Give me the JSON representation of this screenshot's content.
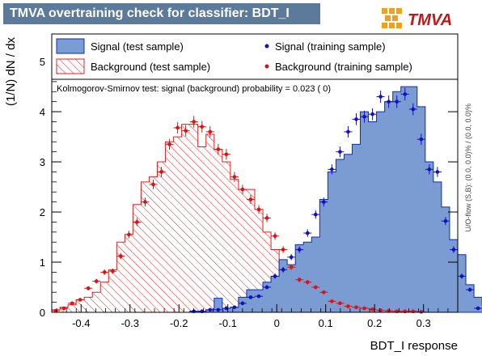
{
  "title": "TMVA overtraining check for classifier: BDT_I",
  "logo_text": "TMVA",
  "side_note": "U/O-flow (S,B): (0.0, 0.0)% / (0.0, 0.0)%",
  "ks_text": "Kolmogorov-Smirnov test: signal (background) probability = 0.023 (    0)",
  "colors": {
    "signal_fill": "#7b9bd3",
    "signal_line": "#0b2fb0",
    "background_line": "#e02020",
    "signal_points": "#1010c0",
    "background_points": "#e01010"
  },
  "chart_data": {
    "type": "histogram",
    "xlabel": "BDT_I response",
    "ylabel": "(1/N) dN / dx",
    "xlim": [
      -0.46,
      0.37
    ],
    "ylim": [
      0,
      5.55
    ],
    "x_ticks": [
      -0.4,
      -0.3,
      -0.2,
      -0.1,
      0,
      0.1,
      0.2,
      0.3
    ],
    "y_ticks": [
      0,
      1,
      2,
      3,
      4,
      5
    ],
    "legend": {
      "placement": "top",
      "entries": [
        {
          "label": "Signal (test sample)",
          "style": "filled"
        },
        {
          "label": "Signal (training sample)",
          "style": "marker"
        },
        {
          "label": "Background (test sample)",
          "style": "hatched"
        },
        {
          "label": "Background (training sample)",
          "style": "marker"
        }
      ]
    },
    "bin_edges_start": -0.46,
    "bin_width": 0.0166,
    "signal_test": [
      0,
      0,
      0,
      0,
      0,
      0,
      0,
      0,
      0,
      0,
      0,
      0,
      0,
      0,
      0,
      0,
      0,
      0.02,
      0.02,
      0.05,
      0.28,
      0.08,
      0.1,
      0.3,
      0.45,
      0.45,
      0.6,
      0.72,
      1.05,
      0.95,
      1.35,
      1.4,
      1.5,
      2.25,
      2.8,
      3.05,
      3.15,
      3.35,
      4.0,
      3.8,
      4.0,
      4.2,
      4.4,
      4.5,
      4.5,
      4.1,
      3.0,
      2.6,
      2.1,
      1.45,
      1.15,
      0.55,
      0.3,
      0.15
    ],
    "background_test": [
      0.05,
      0.1,
      0.15,
      0.25,
      0.3,
      0.4,
      0.6,
      0.85,
      1.4,
      1.55,
      2.15,
      2.6,
      2.7,
      3.0,
      3.4,
      3.5,
      3.75,
      3.75,
      3.3,
      3.55,
      3.25,
      3.0,
      2.65,
      2.45,
      2.45,
      2.05,
      1.6,
      1.25,
      0.8,
      0.55,
      0.42,
      0.3,
      0.2,
      0.15,
      0.1,
      0.08,
      0.05,
      0.04,
      0.03,
      0.02,
      0.02,
      0.02,
      0.01,
      0.01,
      0.01,
      0,
      0,
      0,
      0,
      0,
      0,
      0,
      0,
      0
    ],
    "signal_train": [
      null,
      null,
      null,
      null,
      null,
      null,
      null,
      null,
      null,
      null,
      null,
      null,
      null,
      null,
      null,
      null,
      null,
      0.02,
      0.02,
      0.05,
      0.05,
      0.08,
      0.1,
      0.18,
      0.3,
      0.32,
      0.5,
      0.72,
      0.85,
      1.1,
      1.25,
      1.58,
      1.95,
      2.2,
      2.85,
      3.2,
      3.6,
      3.85,
      3.9,
      3.95,
      4.3,
      4.2,
      4.2,
      4.35,
      4.05,
      3.45,
      2.85,
      2.8,
      1.82,
      1.25,
      0.72,
      0.45,
      0.08,
      0.03
    ],
    "background_train": [
      0.03,
      0.08,
      0.18,
      0.25,
      0.48,
      0.62,
      0.8,
      0.82,
      1.12,
      1.55,
      1.8,
      2.2,
      2.55,
      2.8,
      3.35,
      3.68,
      3.62,
      3.8,
      3.7,
      3.6,
      3.25,
      3.15,
      2.7,
      2.45,
      2.25,
      2.05,
      1.88,
      1.52,
      1.25,
      0.9,
      0.65,
      0.6,
      0.5,
      0.4,
      0.22,
      0.18,
      0.12,
      0.1,
      0.08,
      0.06,
      0.04,
      0.03,
      0.02,
      0.02,
      0.02,
      0.01,
      null,
      null,
      null,
      null,
      null,
      null,
      null,
      null
    ]
  }
}
